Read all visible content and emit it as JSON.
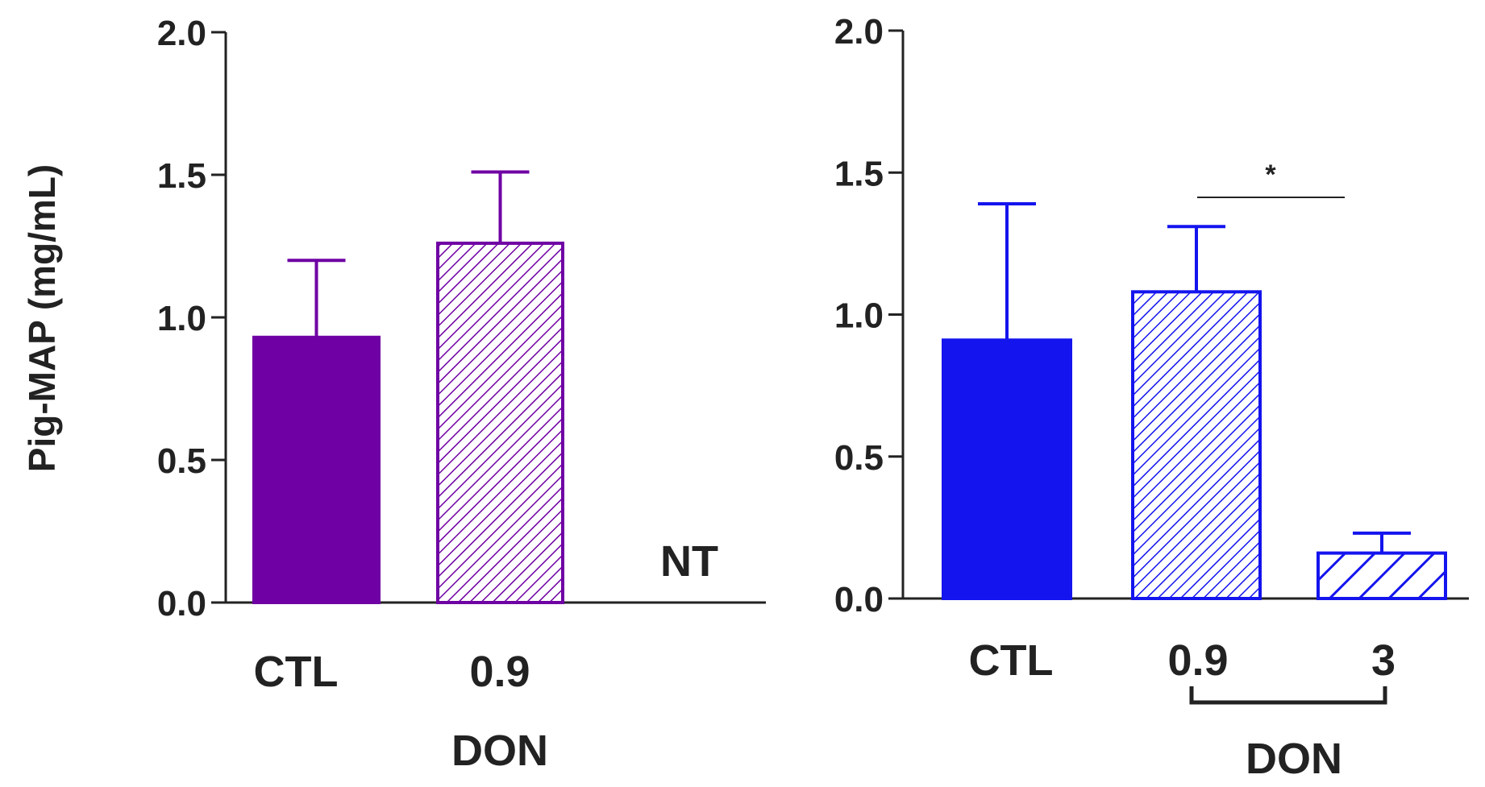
{
  "ylabel": "Pig-MAP (mg/mL)",
  "panels": [
    {
      "id": "left",
      "color": "#6f00a3",
      "xtick_labels": [
        "CTL",
        "0.9"
      ],
      "group_label": "DON",
      "not_tested_label": "NT"
    },
    {
      "id": "right",
      "color": "#1414ee",
      "xtick_labels": [
        "CTL",
        "0.9",
        "3"
      ],
      "group_label": "DON",
      "significance_label": "*"
    }
  ],
  "chart_data": [
    {
      "type": "bar",
      "title": "",
      "xlabel": "",
      "ylabel": "Pig-MAP (mg/mL)",
      "ylim": [
        0,
        2.0
      ],
      "yticks": [
        "0.0",
        "0.5",
        "1.0",
        "1.5",
        "2.0"
      ],
      "categories": [
        "CTL",
        "0.9",
        "NT"
      ],
      "values": [
        0.93,
        1.26,
        null
      ],
      "errors": [
        0.27,
        0.25,
        null
      ],
      "fills": [
        "solid",
        "fine-hatch",
        "none"
      ],
      "annotations": [
        "NT"
      ],
      "group_label": "DON"
    },
    {
      "type": "bar",
      "title": "",
      "xlabel": "",
      "ylabel": "Pig-MAP (mg/mL)",
      "ylim": [
        0,
        2.0
      ],
      "yticks": [
        "0.0",
        "0.5",
        "1.0",
        "1.5",
        "2.0"
      ],
      "categories": [
        "CTL",
        "0.9",
        "3"
      ],
      "values": [
        0.91,
        1.08,
        0.16
      ],
      "errors": [
        0.48,
        0.23,
        0.07
      ],
      "fills": [
        "solid",
        "fine-hatch",
        "coarse-hatch"
      ],
      "significance": {
        "between": [
          "0.9",
          "3"
        ],
        "label": "*"
      },
      "group_label": "DON"
    }
  ]
}
